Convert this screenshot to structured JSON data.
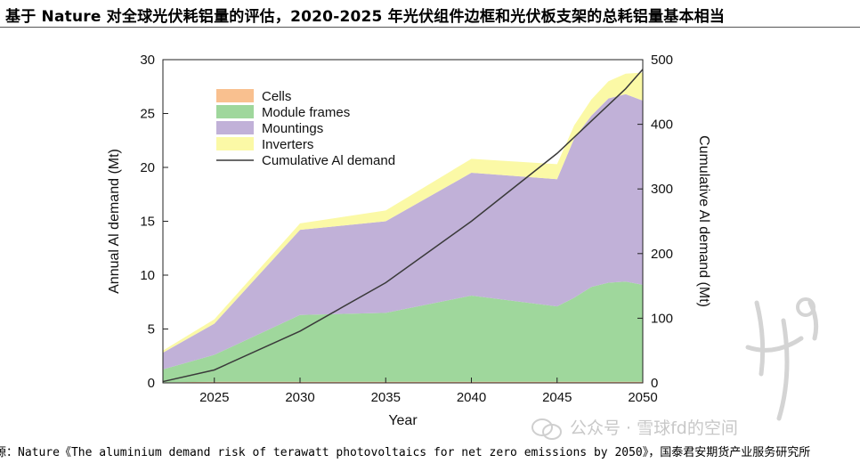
{
  "header": {
    "title": "基于 Nature 对全球光伏耗铝量的评估，2020-2025 年光伏组件边框和光伏板支架的总耗铝量基本相当"
  },
  "footer": {
    "source": "源：Nature《The aluminium demand risk of terawatt photovoltaics for net zero emissions by 2050》，国泰君安期货产业服务研究所"
  },
  "watermark": {
    "text": "公众号 · 雪球fd的空间"
  },
  "colors": {
    "cells": "#f9c08f",
    "module_frames": "#9fd79c",
    "mountings": "#c1b1d8",
    "inverters": "#fbf9a6",
    "cumulative_line": "#3a3a3a"
  },
  "chart_data": {
    "type": "area",
    "title": "",
    "xlabel": "Year",
    "ylabel": "Annual Al demand (Mt)",
    "y2label": "Cumulative Al demand (Mt)",
    "xlim": [
      2022,
      2050
    ],
    "ylim": [
      0,
      30
    ],
    "y2lim": [
      0,
      500
    ],
    "xticks": [
      2025,
      2030,
      2035,
      2040,
      2045,
      2050
    ],
    "yticks": [
      0,
      5,
      10,
      15,
      20,
      25,
      30
    ],
    "y2ticks": [
      0,
      100,
      200,
      300,
      400,
      500
    ],
    "grid": false,
    "legend_position": "top-left",
    "x": [
      2022,
      2025,
      2030,
      2035,
      2040,
      2045,
      2046,
      2047,
      2048,
      2049,
      2050
    ],
    "series": [
      {
        "name": "Cells",
        "type": "stacked-area",
        "color": "#f9c08f",
        "values": [
          0.05,
          0.1,
          0.1,
          0.1,
          0.1,
          0.1,
          0.1,
          0.1,
          0.1,
          0.1,
          0.1
        ]
      },
      {
        "name": "Module frames",
        "type": "stacked-area",
        "color": "#9fd79c",
        "values": [
          1.2,
          2.5,
          6.2,
          6.4,
          8.0,
          7.0,
          7.8,
          8.8,
          9.2,
          9.3,
          9.0
        ]
      },
      {
        "name": "Mountings",
        "type": "stacked-area",
        "color": "#c1b1d8",
        "values": [
          1.55,
          2.9,
          7.9,
          8.5,
          11.4,
          11.8,
          14.8,
          15.9,
          17.1,
          17.4,
          17.1
        ]
      },
      {
        "name": "Inverters",
        "type": "stacked-area",
        "color": "#fbf9a6",
        "values": [
          0.2,
          0.4,
          0.6,
          1.0,
          1.3,
          1.4,
          1.2,
          1.5,
          1.6,
          1.9,
          2.6
        ]
      },
      {
        "name": "Cumulative Al demand",
        "type": "line",
        "axis": "right",
        "color": "#3a3a3a",
        "values": [
          2,
          20,
          80,
          155,
          250,
          355,
          380,
          405,
          430,
          455,
          485
        ]
      }
    ]
  }
}
